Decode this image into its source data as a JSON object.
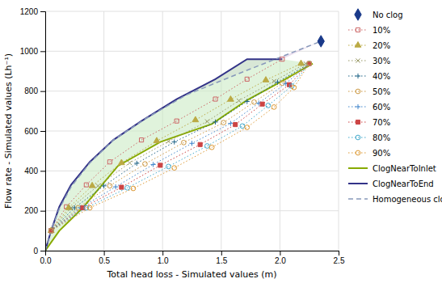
{
  "chart_data": {
    "type": "line",
    "xlabel": "Total head loss - Simulated values (m)",
    "ylabel": "Flow rate - Simulated values (Lh⁻¹)",
    "xlim": [
      0,
      2.5
    ],
    "ylim": [
      0,
      1200
    ],
    "xticks": [
      {
        "value": 0,
        "label": "0.0"
      },
      0.5,
      {
        "value": 1.0,
        "label": "1.0"
      },
      {
        "value": 1.5,
        "label": "1.5"
      },
      {
        "value": 2.0,
        "label": "2.0"
      },
      2.5
    ],
    "yticks": [
      0,
      200,
      400,
      600,
      800,
      1000,
      1200
    ],
    "grid": true,
    "legend": "right",
    "series": [
      {
        "name": "No clog",
        "type": "scatter",
        "color": "#1a3a8a",
        "marker": "diamond",
        "x": [
          2.35
        ],
        "values": [
          1050
        ]
      },
      {
        "name": "10%",
        "type": "line",
        "color": "#cc6666",
        "marker": "square-open",
        "line_style": "dotted",
        "x": [
          0.05,
          0.18,
          0.35,
          0.55,
          0.82,
          1.12,
          1.45,
          1.72,
          2.02
        ],
        "values": [
          100,
          220,
          330,
          445,
          555,
          650,
          760,
          860,
          960
        ]
      },
      {
        "name": "20%",
        "type": "line",
        "color": "#bbaa44",
        "marker": "triangle",
        "line_style": "dotted",
        "x": [
          0.05,
          0.2,
          0.4,
          0.65,
          0.95,
          1.28,
          1.58,
          1.88,
          2.18
        ],
        "values": [
          100,
          215,
          325,
          440,
          550,
          655,
          758,
          855,
          938
        ]
      },
      {
        "name": "30%",
        "type": "line",
        "color": "#999966",
        "marker": "x",
        "line_style": "dotted",
        "x": [
          0.05,
          0.22,
          0.45,
          0.72,
          1.05,
          1.38,
          1.65,
          1.95,
          2.22
        ],
        "values": [
          100,
          215,
          325,
          440,
          548,
          648,
          752,
          850,
          938
        ]
      },
      {
        "name": "40%",
        "type": "line",
        "color": "#226688",
        "marker": "plus",
        "line_style": "dotted",
        "x": [
          0.05,
          0.25,
          0.5,
          0.78,
          1.1,
          1.45,
          1.72,
          1.98,
          2.25
        ],
        "values": [
          100,
          215,
          325,
          438,
          545,
          645,
          748,
          845,
          938
        ]
      },
      {
        "name": "50%",
        "type": "line",
        "color": "#cc9944",
        "marker": "circle-open",
        "line_style": "dotted",
        "x": [
          0.05,
          0.28,
          0.55,
          0.85,
          1.18,
          1.52,
          1.78,
          2.02,
          2.25
        ],
        "values": [
          100,
          215,
          325,
          435,
          542,
          642,
          745,
          840,
          938
        ]
      },
      {
        "name": "60%",
        "type": "line",
        "color": "#4488cc",
        "marker": "plus",
        "line_style": "dotted",
        "x": [
          0.05,
          0.3,
          0.6,
          0.92,
          1.25,
          1.58,
          1.82,
          2.05,
          2.25
        ],
        "values": [
          100,
          215,
          320,
          432,
          538,
          638,
          740,
          838,
          938
        ]
      },
      {
        "name": "70%",
        "type": "line",
        "color": "#cc4444",
        "marker": "square",
        "line_style": "dotted",
        "x": [
          0.05,
          0.32,
          0.65,
          0.98,
          1.32,
          1.62,
          1.85,
          2.08,
          2.25
        ],
        "values": [
          100,
          215,
          318,
          428,
          532,
          632,
          735,
          832,
          938
        ]
      },
      {
        "name": "80%",
        "type": "line",
        "color": "#44aacc",
        "marker": "circle-open",
        "line_style": "dotted",
        "x": [
          0.05,
          0.35,
          0.7,
          1.05,
          1.38,
          1.68,
          1.9,
          2.1,
          2.25
        ],
        "values": [
          100,
          215,
          315,
          422,
          525,
          625,
          728,
          825,
          938
        ]
      },
      {
        "name": "90%",
        "type": "line",
        "color": "#dd9933",
        "marker": "circle-open",
        "line_style": "dotted",
        "x": [
          0.05,
          0.38,
          0.75,
          1.1,
          1.42,
          1.72,
          1.95,
          2.12,
          2.25
        ],
        "values": [
          100,
          215,
          312,
          415,
          518,
          618,
          720,
          818,
          938
        ]
      },
      {
        "name": "ClogNearToInlet",
        "type": "line",
        "color": "#88aa00",
        "line_style": "solid",
        "x": [
          0.0,
          0.12,
          0.32,
          0.62,
          0.98,
          1.42,
          1.72,
          1.98,
          2.28
        ],
        "values": [
          0,
          100,
          215,
          425,
          545,
          635,
          755,
          838,
          938
        ]
      },
      {
        "name": "ClogNearToEnd",
        "type": "line",
        "color": "#333388",
        "line_style": "solid",
        "x": [
          0.0,
          0.05,
          0.12,
          0.22,
          0.38,
          0.58,
          0.82,
          1.12,
          1.45,
          1.72,
          2.02
        ],
        "values": [
          0,
          100,
          220,
          330,
          445,
          555,
          650,
          760,
          860,
          960,
          960
        ]
      },
      {
        "name": "Homogeneous clo",
        "type": "line",
        "color": "#8899bb",
        "line_style": "dashed",
        "x": [
          0.0,
          0.05,
          0.12,
          0.22,
          0.38,
          0.58,
          0.85,
          1.2,
          1.7,
          2.35
        ],
        "values": [
          0,
          100,
          210,
          320,
          440,
          555,
          660,
          780,
          900,
          1050
        ]
      }
    ]
  }
}
